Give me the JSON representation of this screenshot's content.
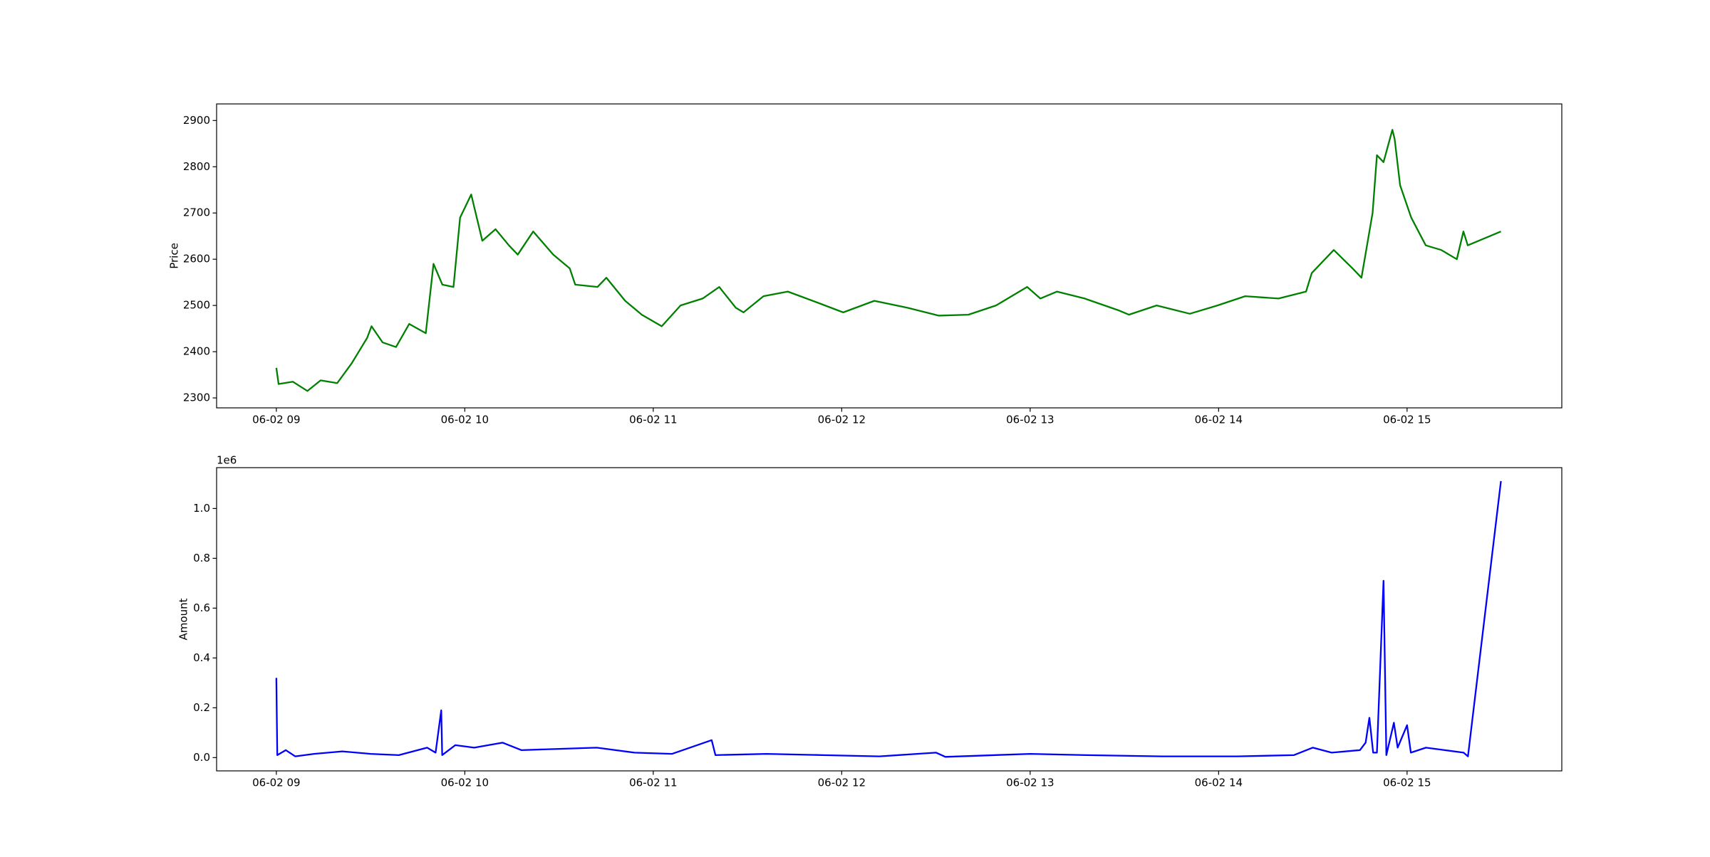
{
  "chart_data": [
    {
      "type": "line",
      "ylabel": "Price",
      "color": "#008000",
      "x": [
        9.0,
        9.012,
        9.088,
        9.165,
        9.235,
        9.323,
        9.4,
        9.482,
        9.505,
        9.564,
        9.635,
        9.705,
        9.793,
        9.834,
        9.881,
        9.94,
        9.975,
        10.034,
        10.093,
        10.163,
        10.234,
        10.281,
        10.363,
        10.469,
        10.557,
        10.586,
        10.704,
        10.751,
        10.851,
        10.939,
        11.045,
        11.145,
        11.262,
        11.35,
        11.438,
        11.479,
        11.585,
        11.714,
        11.879,
        12.008,
        12.173,
        12.349,
        12.514,
        12.672,
        12.819,
        12.984,
        13.054,
        13.142,
        13.289,
        13.465,
        13.524,
        13.671,
        13.847,
        13.994,
        14.141,
        14.318,
        14.464,
        14.494,
        14.611,
        14.711,
        14.758,
        14.817,
        14.84,
        14.875,
        14.922,
        14.934,
        14.963,
        15.022,
        15.099,
        15.181,
        15.264,
        15.299,
        15.322,
        15.498
      ],
      "values": [
        2365,
        2330,
        2335,
        2315,
        2338,
        2332,
        2375,
        2430,
        2455,
        2420,
        2410,
        2460,
        2440,
        2590,
        2545,
        2540,
        2690,
        2740,
        2640,
        2665,
        2630,
        2610,
        2660,
        2610,
        2580,
        2545,
        2540,
        2560,
        2510,
        2480,
        2455,
        2500,
        2515,
        2540,
        2495,
        2485,
        2520,
        2530,
        2505,
        2485,
        2510,
        2495,
        2478,
        2480,
        2500,
        2540,
        2515,
        2530,
        2515,
        2490,
        2480,
        2500,
        2482,
        2500,
        2520,
        2515,
        2530,
        2570,
        2620,
        2580,
        2560,
        2700,
        2825,
        2810,
        2880,
        2860,
        2760,
        2690,
        2630,
        2620,
        2600,
        2660,
        2630,
        2660
      ],
      "xlim": [
        8.683,
        15.821
      ],
      "xticks": [
        {
          "value": 9,
          "label": "06-02 09"
        },
        {
          "value": 10,
          "label": "06-02 10"
        },
        {
          "value": 11,
          "label": "06-02 11"
        },
        {
          "value": 12,
          "label": "06-02 12"
        },
        {
          "value": 13,
          "label": "06-02 13"
        },
        {
          "value": 14,
          "label": "06-02 14"
        },
        {
          "value": 15,
          "label": "06-02 15"
        }
      ],
      "ylim": [
        2278.5,
        2935.9
      ],
      "yticks": [
        2300,
        2400,
        2500,
        2600,
        2700,
        2800,
        2900
      ]
    },
    {
      "type": "line",
      "ylabel": "Amount",
      "color": "#0000ff",
      "y_offset_label": "1e6",
      "x": [
        9.0,
        9.005,
        9.05,
        9.1,
        9.2,
        9.35,
        9.5,
        9.65,
        9.8,
        9.845,
        9.875,
        9.88,
        9.95,
        10.05,
        10.2,
        10.3,
        10.5,
        10.7,
        10.9,
        11.1,
        11.31,
        11.33,
        11.6,
        11.9,
        12.2,
        12.5,
        12.55,
        13.0,
        13.3,
        13.7,
        14.1,
        14.4,
        14.5,
        14.6,
        14.75,
        14.78,
        14.8,
        14.82,
        14.84,
        14.875,
        14.89,
        14.93,
        14.95,
        15.0,
        15.02,
        15.1,
        15.2,
        15.3,
        15.323,
        15.498
      ],
      "values": [
        320000,
        10000,
        30000,
        5000,
        15000,
        25000,
        15000,
        10000,
        40000,
        20000,
        190000,
        10000,
        50000,
        40000,
        60000,
        30000,
        35000,
        40000,
        20000,
        15000,
        70000,
        10000,
        15000,
        10000,
        5000,
        20000,
        3000,
        15000,
        10000,
        5000,
        5000,
        10000,
        40000,
        20000,
        30000,
        60000,
        160000,
        20000,
        20000,
        710000,
        10000,
        140000,
        40000,
        130000,
        20000,
        40000,
        30000,
        20000,
        5000,
        1110000
      ],
      "xlim": [
        8.683,
        15.821
      ],
      "xticks": [
        {
          "value": 9,
          "label": "06-02 09"
        },
        {
          "value": 10,
          "label": "06-02 10"
        },
        {
          "value": 11,
          "label": "06-02 11"
        },
        {
          "value": 12,
          "label": "06-02 12"
        },
        {
          "value": 13,
          "label": "06-02 13"
        },
        {
          "value": 14,
          "label": "06-02 14"
        },
        {
          "value": 15,
          "label": "06-02 15"
        }
      ],
      "ylim": [
        -53300,
        1164000
      ],
      "yticks": [
        {
          "value": 0,
          "label": "0.0"
        },
        {
          "value": 200000,
          "label": "0.2"
        },
        {
          "value": 400000,
          "label": "0.4"
        },
        {
          "value": 600000,
          "label": "0.6"
        },
        {
          "value": 800000,
          "label": "0.8"
        },
        {
          "value": 1000000,
          "label": "1.0"
        }
      ]
    }
  ]
}
